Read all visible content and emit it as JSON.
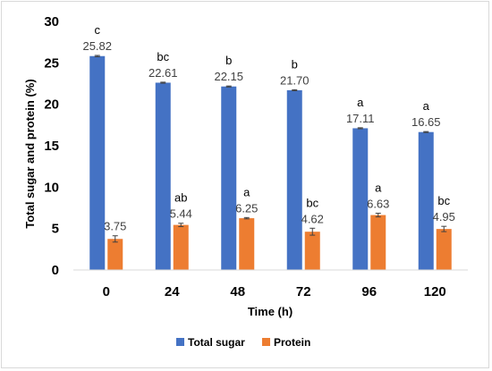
{
  "chart_data": {
    "type": "bar",
    "title": "",
    "xlabel": "Time (h)",
    "ylabel": "Total sugar and protein (%)",
    "ylim": [
      0,
      30
    ],
    "yticks": [
      0,
      5,
      10,
      15,
      20,
      25,
      30
    ],
    "categories": [
      "0",
      "24",
      "48",
      "72",
      "96",
      "120"
    ],
    "grid": false,
    "legend_position": "bottom",
    "series": [
      {
        "name": "Total sugar",
        "color": "#4472c4",
        "values": [
          25.82,
          22.61,
          22.15,
          21.7,
          17.11,
          16.65
        ],
        "value_labels": [
          "25.82",
          "22.61",
          "22.15",
          "21.70",
          "17.11",
          "16.65"
        ],
        "letters": [
          "c",
          "bc",
          "b",
          "b",
          "a",
          "a"
        ],
        "errors": [
          0.08,
          0.06,
          0.06,
          0.06,
          0.06,
          0.06
        ]
      },
      {
        "name": "Protein",
        "color": "#ed7d31",
        "values": [
          3.75,
          5.44,
          6.25,
          4.62,
          6.63,
          4.95
        ],
        "value_labels": [
          "3.75",
          "5.44",
          "6.25",
          "4.62",
          "6.63",
          "4.95"
        ],
        "letters": [
          "",
          "ab",
          "a",
          "bc",
          "a",
          "bc"
        ],
        "errors": [
          0.38,
          0.2,
          0.08,
          0.42,
          0.22,
          0.32
        ]
      }
    ]
  }
}
